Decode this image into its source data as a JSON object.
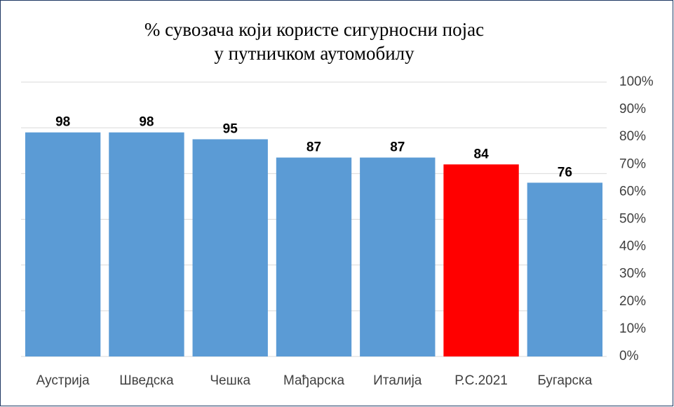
{
  "chart_data": {
    "type": "bar",
    "title": [
      "% сувозача који користе сигурносни појас",
      "у путничком аутомобилу"
    ],
    "categories": [
      "Аустрија",
      "Шведска",
      "Чешка",
      "Мађарска",
      "Италија",
      "Р.С.2021",
      "Бугарска"
    ],
    "values": [
      98,
      98,
      95,
      87,
      87,
      84,
      76
    ],
    "colors": [
      "#5b9bd5",
      "#5b9bd5",
      "#5b9bd5",
      "#5b9bd5",
      "#5b9bd5",
      "#ff0000",
      "#5b9bd5"
    ],
    "ylim": [
      0,
      120
    ],
    "yticks": [
      0,
      20,
      40,
      60,
      80,
      100,
      120
    ],
    "grid": true,
    "y2lim": [
      0,
      100
    ],
    "y2ticks": [
      {
        "value": 0,
        "label": "0%"
      },
      {
        "value": 10,
        "label": "10%"
      },
      {
        "value": 20,
        "label": "20%"
      },
      {
        "value": 30,
        "label": "30%"
      },
      {
        "value": 40,
        "label": "40%"
      },
      {
        "value": 50,
        "label": "50%"
      },
      {
        "value": 60,
        "label": "60%"
      },
      {
        "value": 70,
        "label": "70%"
      },
      {
        "value": 80,
        "label": "80%"
      },
      {
        "value": 90,
        "label": "90%"
      },
      {
        "value": 100,
        "label": "100%"
      }
    ]
  }
}
